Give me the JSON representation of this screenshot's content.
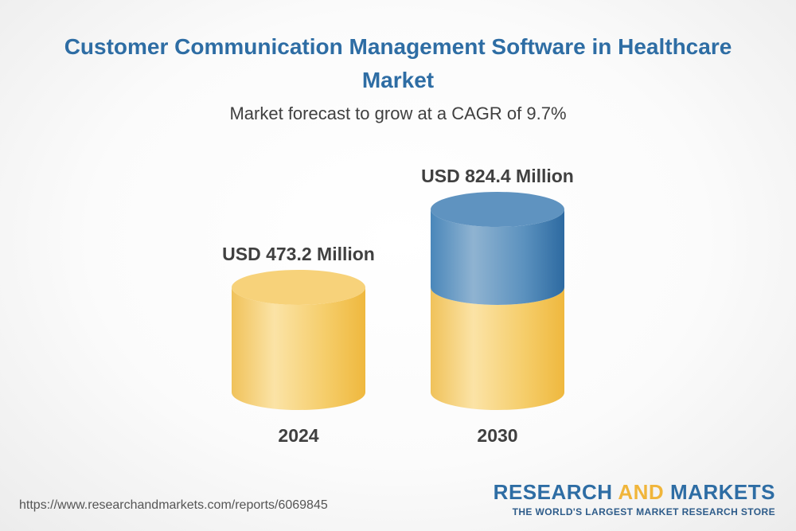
{
  "title": "Customer Communication Management Software in Healthcare Market",
  "subtitle": "Market forecast to grow at a CAGR of 9.7%",
  "chart_data": {
    "type": "bar",
    "style": "3d-cylinder",
    "categories": [
      "2024",
      "2030"
    ],
    "values": [
      473.2,
      824.4
    ],
    "value_labels": [
      "USD 473.2 Million",
      "USD 824.4 Million"
    ],
    "unit": "USD Million",
    "cagr": "9.7%",
    "ylim": [
      0,
      900
    ]
  },
  "colors": {
    "title": "#2e6da4",
    "base_gold": "#f2c45a",
    "growth_blue": "#3f7fb3"
  },
  "footer": {
    "url": "https://www.researchandmarkets.com/reports/6069845",
    "logo_word1": "RESEARCH",
    "logo_word2": "AND",
    "logo_word3": "MARKETS",
    "tagline": "THE WORLD'S LARGEST MARKET RESEARCH STORE"
  }
}
